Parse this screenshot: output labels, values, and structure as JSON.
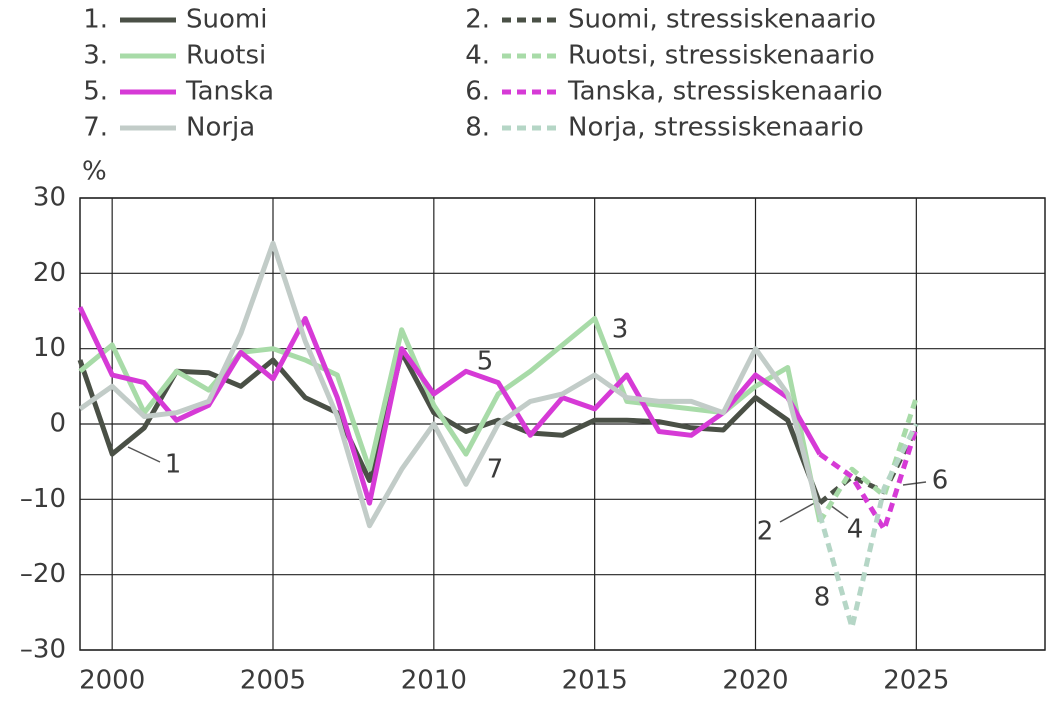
{
  "chart_data": {
    "type": "line",
    "y_label": "%",
    "x": [
      1999,
      2000,
      2001,
      2002,
      2003,
      2004,
      2005,
      2006,
      2007,
      2008,
      2009,
      2010,
      2011,
      2012,
      2013,
      2014,
      2015,
      2016,
      2017,
      2018,
      2019,
      2020,
      2021,
      2022,
      2023,
      2024,
      2025
    ],
    "xlim": [
      1999,
      2029
    ],
    "xticks": [
      2000,
      2005,
      2010,
      2015,
      2020,
      2025
    ],
    "ylim": [
      -30,
      30
    ],
    "yticks": [
      {
        "value": -30,
        "label": "–30"
      },
      {
        "value": -20,
        "label": "–20"
      },
      {
        "value": -10,
        "label": "–10"
      },
      0,
      10,
      20,
      30
    ],
    "grid": true,
    "series": [
      {
        "number": "1.",
        "name": "Suomi",
        "color": "#4a5046",
        "dashed": false,
        "values": [
          8.5,
          -4,
          -0.5,
          7,
          6.8,
          5,
          8.5,
          3.5,
          1.5,
          -7.5,
          9.5,
          1.5,
          -1,
          0.5,
          -1.2,
          -1.5,
          0.5,
          0.5,
          0.3,
          -0.5,
          -0.8,
          3.5,
          0.5,
          -10.5,
          null,
          null,
          null
        ]
      },
      {
        "number": "2.",
        "name": "Suomi, stressiskenaario",
        "color": "#4a5046",
        "dashed": true,
        "values": [
          null,
          null,
          null,
          null,
          null,
          null,
          null,
          null,
          null,
          null,
          null,
          null,
          null,
          null,
          null,
          null,
          null,
          null,
          null,
          null,
          null,
          null,
          null,
          -10.5,
          -7,
          -9,
          -0.5
        ]
      },
      {
        "number": "3.",
        "name": "Ruotsi",
        "color": "#a8dba8",
        "dashed": false,
        "values": [
          7,
          10.5,
          1.5,
          7,
          4.5,
          9.5,
          10,
          8.5,
          6.5,
          -6,
          12.5,
          2.5,
          -4,
          4,
          7,
          10.5,
          14,
          3,
          2.5,
          2,
          1.5,
          5,
          7.5,
          -13,
          null,
          null,
          null
        ]
      },
      {
        "number": "4.",
        "name": "Ruotsi, stressiskenaario",
        "color": "#a8dba8",
        "dashed": true,
        "values": [
          null,
          null,
          null,
          null,
          null,
          null,
          null,
          null,
          null,
          null,
          null,
          null,
          null,
          null,
          null,
          null,
          null,
          null,
          null,
          null,
          null,
          null,
          null,
          -13,
          -6,
          -9.5,
          3.5
        ]
      },
      {
        "number": "5.",
        "name": "Tanska",
        "color": "#d63ad6",
        "dashed": false,
        "values": [
          15.5,
          6.5,
          5.5,
          0.5,
          2.5,
          9.5,
          6,
          14,
          3.5,
          -10.5,
          10,
          4,
          7,
          5.5,
          -1.5,
          3.5,
          2,
          6.5,
          -1,
          -1.5,
          1.5,
          6.5,
          3.5,
          -4,
          null,
          null,
          null
        ]
      },
      {
        "number": "6.",
        "name": "Tanska, stressiskenaario",
        "color": "#d63ad6",
        "dashed": true,
        "values": [
          null,
          null,
          null,
          null,
          null,
          null,
          null,
          null,
          null,
          null,
          null,
          null,
          null,
          null,
          null,
          null,
          null,
          null,
          null,
          null,
          null,
          null,
          null,
          -4,
          -7,
          -14,
          -0.5
        ]
      },
      {
        "number": "7.",
        "name": "Norja",
        "color": "#c2ccc8",
        "dashed": false,
        "values": [
          2,
          5,
          1,
          1.5,
          3,
          12,
          24,
          11,
          1,
          -13.5,
          -6,
          0,
          -8,
          0,
          3,
          4,
          6.5,
          3.5,
          3,
          3,
          1.5,
          10,
          4,
          -12,
          null,
          null,
          null
        ]
      },
      {
        "number": "8.",
        "name": "Norja, stressiskenaario",
        "color": "#b5d6c6",
        "dashed": true,
        "values": [
          null,
          null,
          null,
          null,
          null,
          null,
          null,
          null,
          null,
          null,
          null,
          null,
          null,
          null,
          null,
          null,
          null,
          null,
          null,
          null,
          null,
          null,
          null,
          -12,
          -27,
          -8.5,
          0
        ]
      }
    ],
    "annotations": [
      "1",
      "2",
      "3",
      "4",
      "5",
      "6",
      "7",
      "8"
    ]
  }
}
